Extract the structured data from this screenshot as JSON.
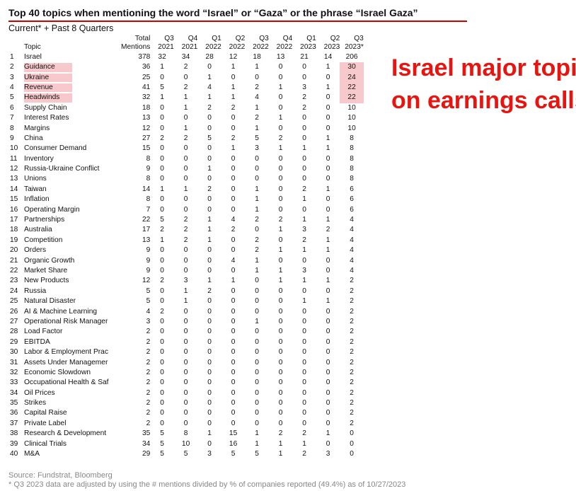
{
  "title": "Top 40 topics when mentioning the word “Israel” or “Gaza” or the phrase “Israel Gaza”",
  "subtitle": "Current* + Past 8 Quarters",
  "columns": {
    "topic": "Topic",
    "total": [
      "Total",
      "Mentions"
    ],
    "quarters": [
      [
        "Q3",
        "2021"
      ],
      [
        "Q4",
        "2021"
      ],
      [
        "Q1",
        "2022"
      ],
      [
        "Q2",
        "2022"
      ],
      [
        "Q3",
        "2022"
      ],
      [
        "Q4",
        "2022"
      ],
      [
        "Q1",
        "2023"
      ],
      [
        "Q2",
        "2023"
      ],
      [
        "Q3",
        "2023*"
      ]
    ]
  },
  "rows": [
    {
      "rank": "1",
      "topic": "Israel",
      "total": "378",
      "q": [
        "32",
        "34",
        "28",
        "12",
        "18",
        "13",
        "21",
        "14",
        "206"
      ]
    },
    {
      "rank": "2",
      "topic": "Guidance",
      "total": "36",
      "q": [
        "1",
        "2",
        "0",
        "1",
        "1",
        "0",
        "0",
        "1",
        "30"
      ],
      "highlight": true
    },
    {
      "rank": "3",
      "topic": "Ukraine",
      "total": "25",
      "q": [
        "0",
        "0",
        "1",
        "0",
        "0",
        "0",
        "0",
        "0",
        "24"
      ],
      "highlight": true
    },
    {
      "rank": "4",
      "topic": "Revenue",
      "total": "41",
      "q": [
        "5",
        "2",
        "4",
        "1",
        "2",
        "1",
        "3",
        "1",
        "22"
      ],
      "highlight": true
    },
    {
      "rank": "5",
      "topic": "Headwinds",
      "total": "32",
      "q": [
        "1",
        "1",
        "1",
        "1",
        "4",
        "0",
        "2",
        "0",
        "22"
      ],
      "highlight": true
    },
    {
      "rank": "6",
      "topic": "Supply Chain",
      "total": "18",
      "q": [
        "0",
        "1",
        "2",
        "2",
        "1",
        "0",
        "2",
        "0",
        "10"
      ]
    },
    {
      "rank": "7",
      "topic": "Interest Rates",
      "total": "13",
      "q": [
        "0",
        "0",
        "0",
        "0",
        "2",
        "1",
        "0",
        "0",
        "10"
      ]
    },
    {
      "rank": "8",
      "topic": "Margins",
      "total": "12",
      "q": [
        "0",
        "1",
        "0",
        "0",
        "1",
        "0",
        "0",
        "0",
        "10"
      ]
    },
    {
      "rank": "9",
      "topic": "China",
      "total": "27",
      "q": [
        "2",
        "2",
        "5",
        "2",
        "5",
        "2",
        "0",
        "1",
        "8"
      ]
    },
    {
      "rank": "10",
      "topic": "Consumer Demand",
      "total": "15",
      "q": [
        "0",
        "0",
        "0",
        "1",
        "3",
        "1",
        "1",
        "1",
        "8"
      ]
    },
    {
      "rank": "11",
      "topic": "Inventory",
      "total": "8",
      "q": [
        "0",
        "0",
        "0",
        "0",
        "0",
        "0",
        "0",
        "0",
        "8"
      ]
    },
    {
      "rank": "12",
      "topic": "Russia-Ukraine Conflict",
      "total": "9",
      "q": [
        "0",
        "0",
        "1",
        "0",
        "0",
        "0",
        "0",
        "0",
        "8"
      ]
    },
    {
      "rank": "13",
      "topic": "Unions",
      "total": "8",
      "q": [
        "0",
        "0",
        "0",
        "0",
        "0",
        "0",
        "0",
        "0",
        "8"
      ]
    },
    {
      "rank": "14",
      "topic": "Taiwan",
      "total": "14",
      "q": [
        "1",
        "1",
        "2",
        "0",
        "1",
        "0",
        "2",
        "1",
        "6"
      ]
    },
    {
      "rank": "15",
      "topic": "Inflation",
      "total": "8",
      "q": [
        "0",
        "0",
        "0",
        "0",
        "1",
        "0",
        "1",
        "0",
        "6"
      ]
    },
    {
      "rank": "16",
      "topic": "Operating Margin",
      "total": "7",
      "q": [
        "0",
        "0",
        "0",
        "0",
        "1",
        "0",
        "0",
        "0",
        "6"
      ]
    },
    {
      "rank": "17",
      "topic": "Partnerships",
      "total": "22",
      "q": [
        "5",
        "2",
        "1",
        "4",
        "2",
        "2",
        "1",
        "1",
        "4"
      ]
    },
    {
      "rank": "18",
      "topic": "Australia",
      "total": "17",
      "q": [
        "2",
        "2",
        "1",
        "2",
        "0",
        "1",
        "3",
        "2",
        "4"
      ]
    },
    {
      "rank": "19",
      "topic": "Competition",
      "total": "13",
      "q": [
        "1",
        "2",
        "1",
        "0",
        "2",
        "0",
        "2",
        "1",
        "4"
      ]
    },
    {
      "rank": "20",
      "topic": "Orders",
      "total": "9",
      "q": [
        "0",
        "0",
        "0",
        "0",
        "2",
        "1",
        "1",
        "1",
        "4"
      ]
    },
    {
      "rank": "21",
      "topic": "Organic Growth",
      "total": "9",
      "q": [
        "0",
        "0",
        "0",
        "4",
        "1",
        "0",
        "0",
        "0",
        "4"
      ]
    },
    {
      "rank": "22",
      "topic": "Market Share",
      "total": "9",
      "q": [
        "0",
        "0",
        "0",
        "0",
        "1",
        "1",
        "3",
        "0",
        "4"
      ]
    },
    {
      "rank": "23",
      "topic": "New Products",
      "total": "12",
      "q": [
        "2",
        "3",
        "1",
        "1",
        "0",
        "1",
        "1",
        "1",
        "2"
      ]
    },
    {
      "rank": "24",
      "topic": "Russia",
      "total": "5",
      "q": [
        "0",
        "1",
        "2",
        "0",
        "0",
        "0",
        "0",
        "0",
        "2"
      ]
    },
    {
      "rank": "25",
      "topic": "Natural Disaster",
      "total": "5",
      "q": [
        "0",
        "1",
        "0",
        "0",
        "0",
        "0",
        "1",
        "1",
        "2"
      ]
    },
    {
      "rank": "26",
      "topic": "AI & Machine Learning",
      "total": "4",
      "q": [
        "2",
        "0",
        "0",
        "0",
        "0",
        "0",
        "0",
        "0",
        "2"
      ]
    },
    {
      "rank": "27",
      "topic": "Operational Risk Manager",
      "total": "3",
      "q": [
        "0",
        "0",
        "0",
        "0",
        "1",
        "0",
        "0",
        "0",
        "2"
      ]
    },
    {
      "rank": "28",
      "topic": "Load Factor",
      "total": "2",
      "q": [
        "0",
        "0",
        "0",
        "0",
        "0",
        "0",
        "0",
        "0",
        "2"
      ]
    },
    {
      "rank": "29",
      "topic": "EBITDA",
      "total": "2",
      "q": [
        "0",
        "0",
        "0",
        "0",
        "0",
        "0",
        "0",
        "0",
        "2"
      ]
    },
    {
      "rank": "30",
      "topic": "Labor & Employment Prac",
      "total": "2",
      "q": [
        "0",
        "0",
        "0",
        "0",
        "0",
        "0",
        "0",
        "0",
        "2"
      ]
    },
    {
      "rank": "31",
      "topic": "Assets Under Managemer",
      "total": "2",
      "q": [
        "0",
        "0",
        "0",
        "0",
        "0",
        "0",
        "0",
        "0",
        "2"
      ]
    },
    {
      "rank": "32",
      "topic": "Economic Slowdown",
      "total": "2",
      "q": [
        "0",
        "0",
        "0",
        "0",
        "0",
        "0",
        "0",
        "0",
        "2"
      ]
    },
    {
      "rank": "33",
      "topic": "Occupational Health & Saf",
      "total": "2",
      "q": [
        "0",
        "0",
        "0",
        "0",
        "0",
        "0",
        "0",
        "0",
        "2"
      ]
    },
    {
      "rank": "34",
      "topic": "Oil Prices",
      "total": "2",
      "q": [
        "0",
        "0",
        "0",
        "0",
        "0",
        "0",
        "0",
        "0",
        "2"
      ]
    },
    {
      "rank": "35",
      "topic": "Strikes",
      "total": "2",
      "q": [
        "0",
        "0",
        "0",
        "0",
        "0",
        "0",
        "0",
        "0",
        "2"
      ]
    },
    {
      "rank": "36",
      "topic": "Capital Raise",
      "total": "2",
      "q": [
        "0",
        "0",
        "0",
        "0",
        "0",
        "0",
        "0",
        "0",
        "2"
      ]
    },
    {
      "rank": "37",
      "topic": "Private Label",
      "total": "2",
      "q": [
        "0",
        "0",
        "0",
        "0",
        "0",
        "0",
        "0",
        "0",
        "2"
      ]
    },
    {
      "rank": "38",
      "topic": "Research & Development",
      "total": "35",
      "q": [
        "5",
        "8",
        "1",
        "15",
        "1",
        "2",
        "2",
        "1",
        "0"
      ]
    },
    {
      "rank": "39",
      "topic": "Clinical Trials",
      "total": "34",
      "q": [
        "5",
        "10",
        "0",
        "16",
        "1",
        "1",
        "1",
        "0",
        "0"
      ]
    },
    {
      "rank": "40",
      "topic": "M&A",
      "total": "29",
      "q": [
        "5",
        "5",
        "3",
        "5",
        "5",
        "1",
        "2",
        "3",
        "0"
      ]
    }
  ],
  "callout": [
    "Israel major topic",
    "on earnings calls"
  ],
  "source": "Source: Fundstrat, Bloomberg",
  "footnote": "* Q3 2023 data are adjusted by using the # mentions divided by % of companies reported (49.4%) as of 10/27/2023",
  "colors": {
    "accent": "#e8140f",
    "highlight": "#f8c9cc",
    "underline": "#d40000",
    "source_text": "#888888"
  }
}
